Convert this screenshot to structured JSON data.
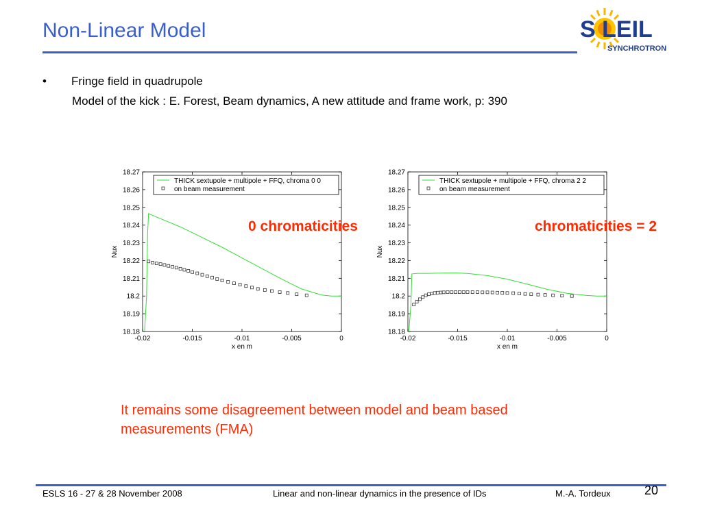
{
  "slide": {
    "title": "Non-Linear Model",
    "bullet_glyph": "•",
    "bullet_text": "Fringe field in quadrupole",
    "subline": "Model of the kick : E. Forest, Beam dynamics, A new attitude and frame work, p: 390",
    "annotation_left": "0 chromaticities",
    "annotation_right": "chromaticities = 2",
    "conclusion": "It remains some disagreement between model and beam based measurements (FMA)"
  },
  "logo": {
    "text_main": "S LEIL",
    "text_sub": "SYNCHROTRON",
    "colors": {
      "text": "#1f3d8f",
      "sun": "#f7b500"
    }
  },
  "footer": {
    "left": "ESLS 16 - 27 & 28 November 2008",
    "center": "Linear and  non-linear dynamics in the presence of IDs",
    "right": "M.-A. Tordeux",
    "page": "20"
  },
  "colors": {
    "title": "#3a5fcd",
    "accent_red": "#ff2a00",
    "model_line": "#33dd33",
    "markers": "#333333"
  },
  "chart_data": [
    {
      "type": "line",
      "xlabel": "x en m",
      "ylabel": "Nux",
      "xlim": [
        -0.02,
        0
      ],
      "ylim": [
        18.18,
        18.27
      ],
      "xticks": [
        -0.02,
        -0.015,
        -0.01,
        -0.005,
        0
      ],
      "xtick_labels": [
        "-0.02",
        "-0.015",
        "-0.01",
        "-0.005",
        "0"
      ],
      "yticks": [
        18.18,
        18.19,
        18.2,
        18.21,
        18.22,
        18.23,
        18.24,
        18.25,
        18.26,
        18.27
      ],
      "ytick_labels": [
        "18.18",
        "18.19",
        "18.2",
        "18.21",
        "18.22",
        "18.23",
        "18.24",
        "18.25",
        "18.26",
        "18.27"
      ],
      "legend_position": "top",
      "series": [
        {
          "name": "THICK sextupole + multipole + FFQ, chroma 0 0",
          "style": "line",
          "x": [
            -0.0198,
            -0.0196,
            -0.0195,
            -0.0194,
            -0.019,
            -0.018,
            -0.016,
            -0.014,
            -0.012,
            -0.01,
            -0.008,
            -0.006,
            -0.004,
            -0.002,
            -0.001,
            0
          ],
          "y": [
            18.18,
            18.2,
            18.235,
            18.2465,
            18.2455,
            18.2432,
            18.2385,
            18.233,
            18.2275,
            18.2215,
            18.2155,
            18.2095,
            18.204,
            18.2006,
            18.2,
            18.2
          ]
        },
        {
          "name": "on beam measurement",
          "style": "marker",
          "x": [
            -0.0194,
            -0.019,
            -0.0186,
            -0.0182,
            -0.0178,
            -0.0174,
            -0.017,
            -0.0166,
            -0.0162,
            -0.0158,
            -0.0154,
            -0.015,
            -0.0145,
            -0.014,
            -0.0135,
            -0.013,
            -0.0125,
            -0.012,
            -0.0114,
            -0.0108,
            -0.0102,
            -0.0096,
            -0.009,
            -0.0084,
            -0.0077,
            -0.007,
            -0.0062,
            -0.0054,
            -0.0045,
            -0.0035
          ],
          "y": [
            18.2195,
            18.2188,
            18.2184,
            18.218,
            18.2175,
            18.217,
            18.2165,
            18.216,
            18.2154,
            18.2148,
            18.2142,
            18.2135,
            18.2128,
            18.212,
            18.2112,
            18.2104,
            18.2096,
            18.2088,
            18.208,
            18.2072,
            18.2064,
            18.2056,
            18.2048,
            18.204,
            18.2034,
            18.2028,
            18.2022,
            18.2017,
            18.201,
            18.2004
          ]
        }
      ]
    },
    {
      "type": "line",
      "xlabel": "x en m",
      "ylabel": "Nux",
      "xlim": [
        -0.02,
        0
      ],
      "ylim": [
        18.18,
        18.27
      ],
      "xticks": [
        -0.02,
        -0.015,
        -0.01,
        -0.005,
        0
      ],
      "xtick_labels": [
        "-0.02",
        "-0.015",
        "-0.01",
        "-0.005",
        "0"
      ],
      "yticks": [
        18.18,
        18.19,
        18.2,
        18.21,
        18.22,
        18.23,
        18.24,
        18.25,
        18.26,
        18.27
      ],
      "ytick_labels": [
        "18.18",
        "18.19",
        "18.2",
        "18.21",
        "18.22",
        "18.23",
        "18.24",
        "18.25",
        "18.26",
        "18.27"
      ],
      "legend_position": "top",
      "series": [
        {
          "name": "THICK sextupole + multipole + FFQ, chroma 2 2",
          "style": "line",
          "x": [
            -0.0199,
            -0.0197,
            -0.0196,
            -0.019,
            -0.018,
            -0.016,
            -0.015,
            -0.014,
            -0.012,
            -0.01,
            -0.008,
            -0.006,
            -0.004,
            -0.002,
            -0.001,
            0
          ],
          "y": [
            18.18,
            18.195,
            18.2125,
            18.2128,
            18.2128,
            18.213,
            18.213,
            18.2127,
            18.2115,
            18.2095,
            18.2067,
            18.2038,
            18.2015,
            18.2003,
            18.2,
            18.2
          ]
        },
        {
          "name": "on beam measurement",
          "style": "marker",
          "x": [
            -0.0194,
            -0.0191,
            -0.0188,
            -0.0185,
            -0.0182,
            -0.0179,
            -0.0176,
            -0.0173,
            -0.017,
            -0.0167,
            -0.0164,
            -0.016,
            -0.0156,
            -0.0152,
            -0.0148,
            -0.0144,
            -0.014,
            -0.0135,
            -0.013,
            -0.0125,
            -0.012,
            -0.0115,
            -0.011,
            -0.0105,
            -0.01,
            -0.0094,
            -0.0088,
            -0.0082,
            -0.0076,
            -0.0069,
            -0.0062,
            -0.0054,
            -0.0045,
            -0.0035
          ],
          "y": [
            18.1952,
            18.1968,
            18.1982,
            18.1994,
            18.2004,
            18.201,
            18.2014,
            18.2017,
            18.2019,
            18.202,
            18.2021,
            18.2022,
            18.2022,
            18.2022,
            18.2022,
            18.2022,
            18.2022,
            18.2022,
            18.2022,
            18.2021,
            18.2021,
            18.202,
            18.2019,
            18.2018,
            18.2017,
            18.2016,
            18.2014,
            18.2012,
            18.201,
            18.2008,
            18.2006,
            18.2004,
            18.2002,
            18.2
          ]
        }
      ]
    }
  ]
}
